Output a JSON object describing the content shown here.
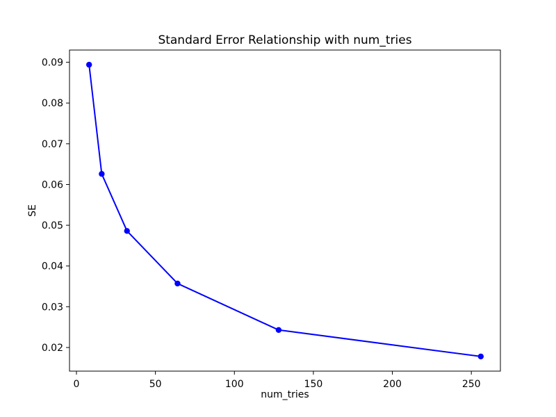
{
  "chart_data": {
    "type": "line",
    "title": "Standard Error Relationship with num_tries",
    "xlabel": "num_tries",
    "ylabel": "SE",
    "x": [
      8,
      16,
      32,
      64,
      128,
      256
    ],
    "series": [
      {
        "name": "SE",
        "values": [
          0.0894,
          0.0626,
          0.0486,
          0.0357,
          0.0243,
          0.0178
        ]
      }
    ],
    "xlim": [
      -4.4,
      268.4
    ],
    "ylim": [
      0.0142,
      0.093
    ],
    "xticks": {
      "values": [
        0,
        50,
        100,
        150,
        200,
        250
      ],
      "labels": [
        "0",
        "50",
        "100",
        "150",
        "200",
        "250"
      ]
    },
    "yticks": {
      "values": [
        0.02,
        0.03,
        0.04,
        0.05,
        0.06,
        0.07,
        0.08,
        0.09
      ],
      "labels": [
        "0.02",
        "0.03",
        "0.04",
        "0.05",
        "0.06",
        "0.07",
        "0.08",
        "0.09"
      ]
    },
    "grid": false,
    "legend": false,
    "line_color": "#0000ff",
    "marker": "circle",
    "axis_color": "#000000",
    "background_color": "#ffffff"
  }
}
